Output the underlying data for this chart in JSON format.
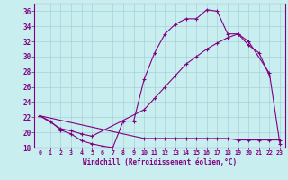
{
  "xlabel": "Windchill (Refroidissement éolien,°C)",
  "bg_color": "#c8eef0",
  "grid_color": "#a8d0d8",
  "line_color": "#800080",
  "xlim": [
    -0.5,
    23.5
  ],
  "ylim": [
    18,
    37
  ],
  "yticks": [
    18,
    20,
    22,
    24,
    26,
    28,
    30,
    32,
    34,
    36
  ],
  "xticks": [
    0,
    1,
    2,
    3,
    4,
    5,
    6,
    7,
    8,
    9,
    10,
    11,
    12,
    13,
    14,
    15,
    16,
    17,
    18,
    19,
    20,
    21,
    22,
    23
  ],
  "c1x": [
    0,
    1,
    2,
    3,
    4,
    5,
    6,
    7,
    8,
    9,
    10,
    11,
    12,
    13,
    14,
    15,
    16,
    17,
    18,
    19,
    20,
    21,
    22
  ],
  "c1y": [
    22.2,
    21.5,
    20.3,
    19.8,
    18.9,
    18.5,
    18.2,
    18.0,
    21.5,
    21.5,
    27.0,
    30.5,
    33.0,
    34.3,
    35.0,
    35.0,
    36.2,
    36.0,
    33.0,
    33.0,
    31.5,
    30.5,
    27.5
  ],
  "c2x": [
    0,
    2,
    3,
    4,
    5,
    10,
    11,
    12,
    13,
    14,
    15,
    16,
    17,
    18,
    19,
    20,
    22,
    23
  ],
  "c2y": [
    22.2,
    20.5,
    20.2,
    19.8,
    19.5,
    23.0,
    24.5,
    26.0,
    27.5,
    29.0,
    30.0,
    31.0,
    31.8,
    32.5,
    33.0,
    32.0,
    27.8,
    18.5
  ],
  "c3x": [
    0,
    10,
    11,
    12,
    13,
    14,
    15,
    16,
    17,
    18,
    19,
    20,
    21,
    22,
    23
  ],
  "c3y": [
    22.2,
    19.2,
    19.2,
    19.2,
    19.2,
    19.2,
    19.2,
    19.2,
    19.2,
    19.2,
    19.0,
    19.0,
    19.0,
    19.0,
    19.0
  ]
}
